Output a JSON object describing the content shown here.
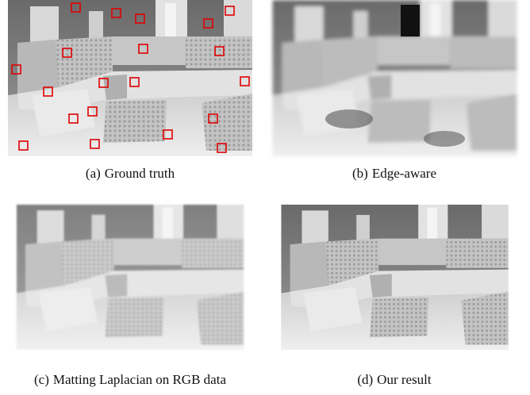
{
  "figure": {
    "panels": [
      {
        "label": "(a)",
        "caption": "Ground truth"
      },
      {
        "label": "(b)",
        "caption": "Edge-aware"
      },
      {
        "label": "(c)",
        "caption": "Matting Laplacian on RGB data"
      },
      {
        "label": "(d)",
        "caption": "Our result"
      }
    ]
  }
}
